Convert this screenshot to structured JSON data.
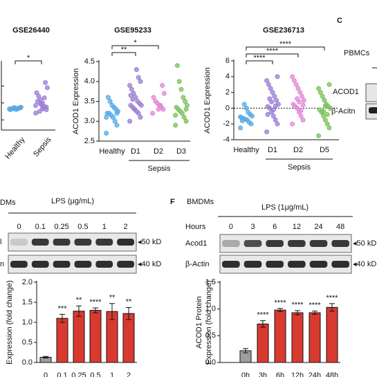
{
  "chart_data": [
    {
      "type": "strip",
      "title": "GSE26440",
      "categories": [
        "Healthy",
        "Sepsis"
      ],
      "colors": [
        "#5aa9e6",
        "#9b7fd4"
      ],
      "ylim": [
        0,
        4
      ],
      "values": [
        [
          1.25,
          1.3,
          1.28,
          1.22,
          1.32,
          1.27,
          1.2,
          1.35,
          1.3,
          1.24,
          1.29,
          1.26
        ],
        [
          1.0,
          1.2,
          1.4,
          1.6,
          1.8,
          2.0,
          2.2,
          2.5,
          2.8,
          1.3,
          1.5,
          1.1,
          1.7,
          1.45,
          1.35,
          1.9,
          1.25,
          1.55
        ]
      ],
      "brackets": [
        {
          "from": "Healthy",
          "to": "Sepsis",
          "label": "*"
        }
      ]
    },
    {
      "type": "strip",
      "title": "GSE95233",
      "ylabel": "ACOD1 Expression",
      "group_label": "Sepsis",
      "categories": [
        "Healthy",
        "D1",
        "D2",
        "D3"
      ],
      "colors": [
        "#5aa9e6",
        "#9b7fd4",
        "#e08ad6",
        "#7cc25a"
      ],
      "ylim": [
        2.5,
        4.5
      ],
      "yticks": [
        2.5,
        {
          "value": 3,
          "label": "3.0"
        },
        3.5,
        {
          "value": 4,
          "label": "4.0"
        },
        4.5
      ],
      "values": [
        [
          2.7,
          2.9,
          3.0,
          3.1,
          3.15,
          3.2,
          3.2,
          3.25,
          3.3,
          3.35,
          3.4,
          3.5,
          3.6,
          3.1,
          3.2
        ],
        [
          3.0,
          3.1,
          3.2,
          3.25,
          3.3,
          3.35,
          3.4,
          3.4,
          3.45,
          3.5,
          3.6,
          3.7,
          3.8,
          3.9,
          4.0,
          4.1,
          4.3,
          3.3,
          3.55,
          3.65
        ],
        [
          3.2,
          3.3,
          3.35,
          3.4,
          3.45,
          3.5,
          3.6,
          3.7,
          3.9,
          3.4,
          3.3
        ],
        [
          2.9,
          3.0,
          3.1,
          3.2,
          3.25,
          3.3,
          3.35,
          3.4,
          3.5,
          3.6,
          3.8,
          4.0,
          4.4,
          3.15,
          3.3
        ]
      ],
      "brackets": [
        {
          "from": "Healthy",
          "to": "D1",
          "label": "**"
        },
        {
          "from": "Healthy",
          "to": "D2",
          "label": "*"
        }
      ]
    },
    {
      "type": "strip",
      "title": "GSE236713",
      "ylabel": "ACOD1 Expression",
      "group_label": "Sepsis",
      "categories": [
        "Healthy",
        "D1",
        "D2",
        "D5"
      ],
      "colors": [
        "#5aa9e6",
        "#9b7fd4",
        "#e08ad6",
        "#7cc25a"
      ],
      "ylim": [
        -4,
        6
      ],
      "yticks": [
        -4,
        -2,
        0,
        2,
        4,
        6
      ],
      "reference_line": 0,
      "values": [
        [
          -2.5,
          -2,
          -1.8,
          -1.5,
          -1.4,
          -1.3,
          -1.2,
          -1,
          -0.8,
          -0.5,
          0,
          0.5,
          -1.6,
          -1.1
        ],
        [
          -3,
          -2,
          -1.5,
          -1,
          -0.5,
          0,
          0.2,
          0.5,
          1,
          1.5,
          2,
          2.5,
          3,
          3.5,
          4,
          0.3,
          -0.2,
          0.8,
          1.2,
          -0.8
        ],
        [
          -2,
          -1.5,
          -1,
          -0.5,
          0,
          0.2,
          0.5,
          1,
          1.5,
          2,
          2.5,
          3,
          3.5,
          4,
          0.4,
          -0.3,
          0.8,
          1.2
        ],
        [
          -3.5,
          -2.5,
          -2,
          -1.5,
          -1,
          -0.5,
          -0.2,
          0,
          0.2,
          0.5,
          1,
          1.5,
          2,
          2.5,
          3,
          -0.8,
          0.3,
          -0.4
        ]
      ],
      "brackets": [
        {
          "from": "Healthy",
          "to": "D1",
          "label": "****"
        },
        {
          "from": "Healthy",
          "to": "D2",
          "label": "****"
        },
        {
          "from": "Healthy",
          "to": "D5",
          "label": "****"
        }
      ]
    },
    {
      "type": "bar",
      "ylabel": [
        "Expression (fold change)"
      ],
      "categories": [
        "0",
        "0.1",
        "0.25",
        "0.5",
        "1",
        "2"
      ],
      "colors": [
        "#9e9e9e",
        "#d93a2f",
        "#d93a2f",
        "#d93a2f",
        "#d93a2f",
        "#d93a2f"
      ],
      "values": [
        0.13,
        1.1,
        1.28,
        1.3,
        1.27,
        1.22
      ],
      "errors": [
        0.02,
        0.1,
        0.13,
        0.06,
        0.2,
        0.15
      ],
      "annotations": [
        null,
        "***",
        "**",
        "****",
        "**",
        "**"
      ],
      "ylim": [
        0,
        2
      ],
      "yticks": [
        {
          "value": 0,
          "label": "0.0"
        },
        0.5,
        {
          "value": 1,
          "label": "1.0"
        },
        1.5,
        {
          "value": 2,
          "label": "2.0"
        }
      ]
    },
    {
      "type": "bar",
      "ylabel": [
        "ACOD1 Protein",
        "Expression (fold change)"
      ],
      "categories": [
        "0h",
        "3h",
        "6h",
        "12h",
        "24h",
        "48h"
      ],
      "colors": [
        "#9e9e9e",
        "#d93a2f",
        "#d93a2f",
        "#d93a2f",
        "#d93a2f",
        "#d93a2f"
      ],
      "values": [
        0.22,
        0.72,
        0.98,
        0.93,
        0.93,
        1.03
      ],
      "errors": [
        0.04,
        0.06,
        0.03,
        0.04,
        0.03,
        0.07
      ],
      "annotations": [
        null,
        "****",
        "****",
        "****",
        "****",
        "****"
      ],
      "ylim": [
        0,
        1.5
      ],
      "yticks": [
        {
          "value": 0,
          "label": "0.0"
        },
        0.5,
        {
          "value": 1,
          "label": "1.0"
        },
        1.5
      ]
    }
  ],
  "panel_labels": {
    "c": "C",
    "f": "F"
  },
  "pbmc": {
    "title": "PBMCs",
    "rows": [
      "ACOD1",
      "β-Acitn"
    ]
  },
  "blot_e": {
    "cell": "DMs",
    "treatment": "LPS (μg/mL)",
    "lanes": [
      "0",
      "0.1",
      "0.25",
      "0.5",
      "1",
      "2"
    ],
    "rows": [
      "l",
      "n"
    ],
    "markers": [
      "◂50 kD",
      "◂40 kD"
    ]
  },
  "blot_f": {
    "cell": "BMDMs",
    "treatment": "LPS (1μg/mL)",
    "lane_title": "Hours",
    "lanes": [
      "0",
      "3",
      "6",
      "12",
      "24",
      "48"
    ],
    "rows": [
      "Acod1",
      "β-Actin"
    ],
    "markers": [
      "◂50 kD",
      "◂40 kD"
    ]
  }
}
